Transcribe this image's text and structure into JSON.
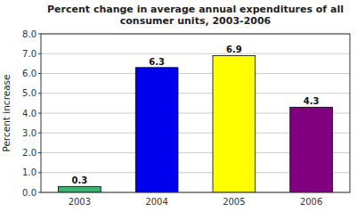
{
  "chart_data": {
    "type": "bar",
    "title": "Percent change in average annual expenditures of all\nconsumer units, 2003-2006",
    "y_label": "Percent increase",
    "categories": [
      "2003",
      "2004",
      "2005",
      "2006"
    ],
    "values": [
      0.3,
      6.3,
      6.9,
      4.3
    ],
    "colors": [
      "#3CB371",
      "#0000EE",
      "#FFFF00",
      "#800080"
    ],
    "ylim": [
      0.0,
      8.0
    ],
    "yticks": [
      {
        "value": 0.0,
        "label": "0.0"
      },
      {
        "value": 1.0,
        "label": "1.0"
      },
      {
        "value": 2.0,
        "label": "2.0"
      },
      {
        "value": 3.0,
        "label": "3.0"
      },
      {
        "value": 4.0,
        "label": "4.0"
      },
      {
        "value": 5.0,
        "label": "5.0"
      },
      {
        "value": 6.0,
        "label": "6.0"
      },
      {
        "value": 7.0,
        "label": "7.0"
      },
      {
        "value": 8.0,
        "label": "8.0"
      }
    ],
    "grid": true,
    "data_labels": true
  }
}
